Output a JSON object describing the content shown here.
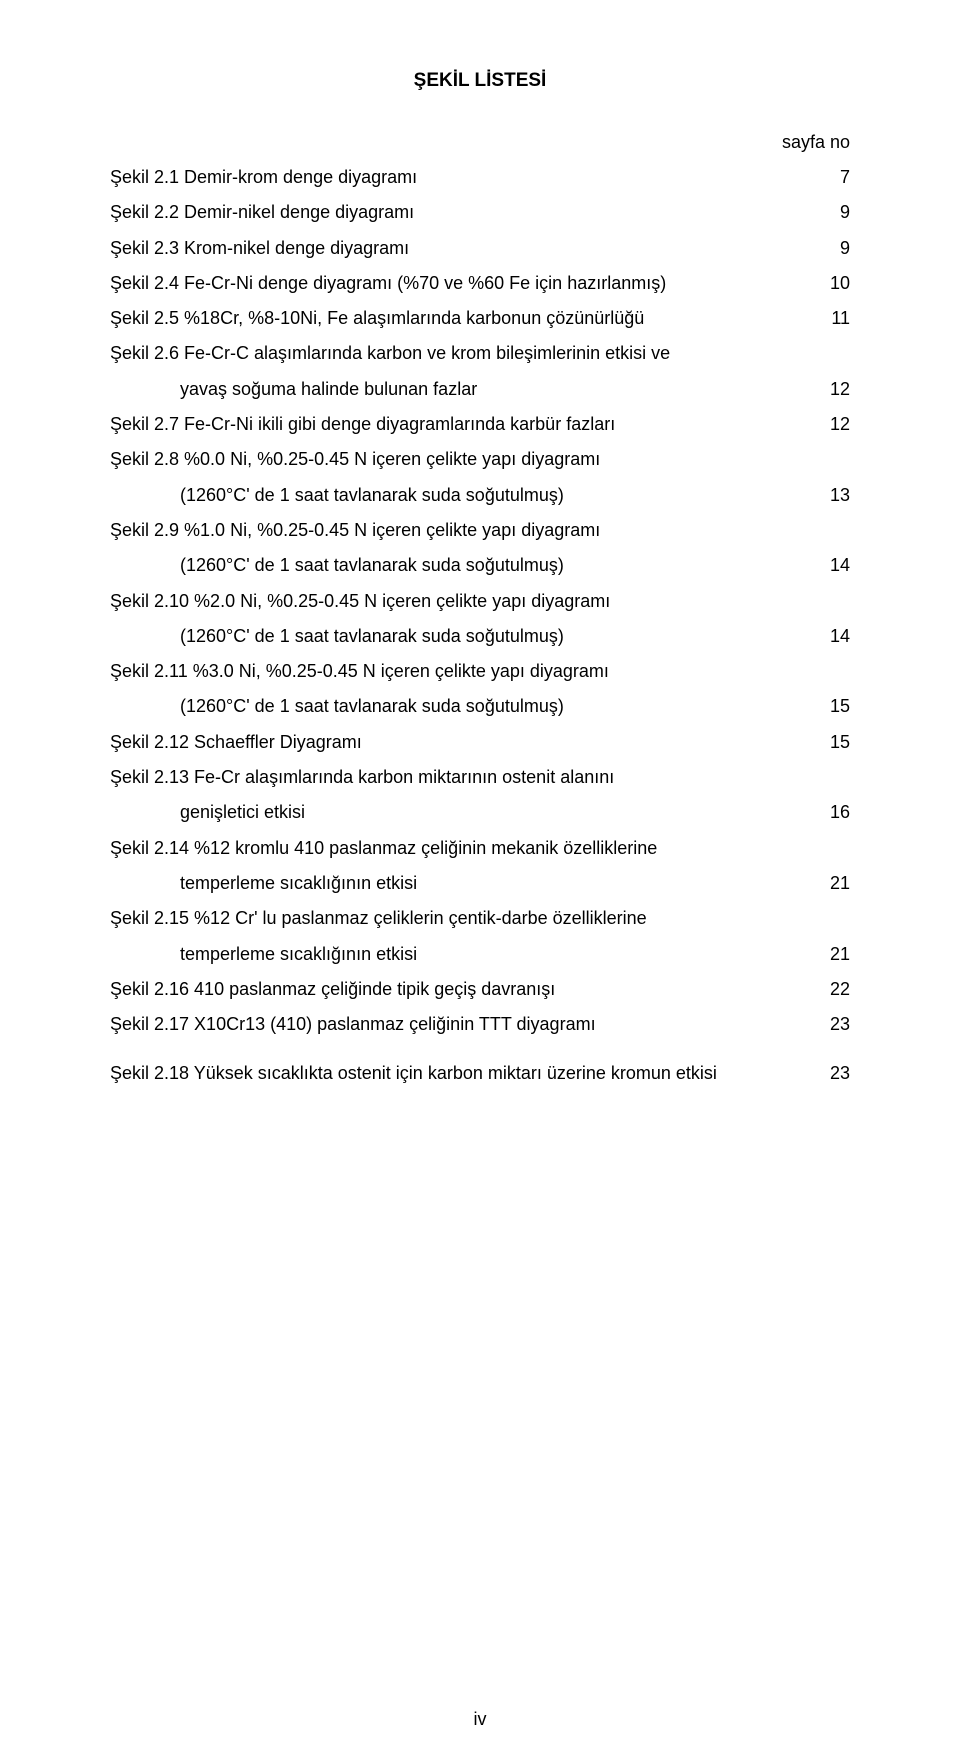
{
  "title": "ŞEKİL LİSTESİ",
  "header_label": "sayfa no",
  "roman_numeral": "iv",
  "items": [
    {
      "kind": "row",
      "text": "Şekil 2.1 Demir-krom denge diyagramı",
      "page": "7"
    },
    {
      "kind": "row",
      "text": "Şekil 2.2 Demir-nikel denge diyagramı",
      "page": "9"
    },
    {
      "kind": "row",
      "text": "Şekil 2.3 Krom-nikel denge diyagramı",
      "page": "9"
    },
    {
      "kind": "row",
      "text": "Şekil 2.4 Fe-Cr-Ni denge diyagramı (%70 ve %60 Fe için hazırlanmış)",
      "page": "10"
    },
    {
      "kind": "row",
      "text": "Şekil 2.5 %18Cr, %8-10Ni, Fe alaşımlarında karbonun çözünürlüğü",
      "page": "11"
    },
    {
      "kind": "row",
      "text": "Şekil 2.6 Fe-Cr-C alaşımlarında karbon ve krom bileşimlerinin etkisi ve",
      "page": ""
    },
    {
      "kind": "sub",
      "text": "yavaş soğuma halinde bulunan fazlar",
      "page": "12"
    },
    {
      "kind": "row",
      "text": "Şekil 2.7 Fe-Cr-Ni ikili gibi denge diyagramlarında karbür fazları",
      "page": "12"
    },
    {
      "kind": "row",
      "text": "Şekil 2.8 %0.0 Ni, %0.25-0.45 N içeren çelikte yapı diyagramı",
      "page": ""
    },
    {
      "kind": "sub",
      "text": "(1260°C' de 1 saat tavlanarak suda soğutulmuş)",
      "page": "13"
    },
    {
      "kind": "row",
      "text": "Şekil 2.9 %1.0 Ni, %0.25-0.45 N içeren çelikte yapı diyagramı",
      "page": ""
    },
    {
      "kind": "sub",
      "text": "(1260°C' de 1 saat tavlanarak suda soğutulmuş)",
      "page": "14"
    },
    {
      "kind": "row",
      "text": "Şekil 2.10 %2.0 Ni, %0.25-0.45 N içeren çelikte yapı diyagramı",
      "page": ""
    },
    {
      "kind": "sub",
      "text": "(1260°C' de 1 saat tavlanarak suda soğutulmuş)",
      "page": "14"
    },
    {
      "kind": "row",
      "text": "Şekil 2.11 %3.0 Ni, %0.25-0.45 N içeren çelikte yapı diyagramı",
      "page": ""
    },
    {
      "kind": "sub",
      "text": "(1260°C' de 1 saat tavlanarak suda soğutulmuş)",
      "page": "15"
    },
    {
      "kind": "row",
      "text": "Şekil 2.12 Schaeffler Diyagramı",
      "page": "15"
    },
    {
      "kind": "row",
      "text": "Şekil 2.13 Fe-Cr alaşımlarında karbon miktarının ostenit alanını",
      "page": ""
    },
    {
      "kind": "sub",
      "text": "genişletici etkisi",
      "page": "16"
    },
    {
      "kind": "row",
      "text": "Şekil 2.14 %12 kromlu 410 paslanmaz çeliğinin mekanik özelliklerine",
      "page": ""
    },
    {
      "kind": "sub",
      "text": "temperleme sıcaklığının  etkisi",
      "page": "21"
    },
    {
      "kind": "row",
      "text": "Şekil 2.15 %12 Cr' lu paslanmaz çeliklerin çentik-darbe özelliklerine",
      "page": ""
    },
    {
      "kind": "sub",
      "text": "temperleme sıcaklığının etkisi",
      "page": "21"
    },
    {
      "kind": "row",
      "text": "Şekil 2.16 410 paslanmaz çeliğinde tipik geçiş davranışı",
      "page": "22"
    },
    {
      "kind": "row",
      "text": "Şekil 2.17 X10Cr13 (410) paslanmaz çeliğinin TTT diyagramı",
      "page": "23"
    },
    {
      "kind": "spacer"
    },
    {
      "kind": "row",
      "text": "Şekil 2.18 Yüksek sıcaklıkta ostenit için karbon miktarı üzerine kromun etkisi",
      "page": "23"
    }
  ]
}
